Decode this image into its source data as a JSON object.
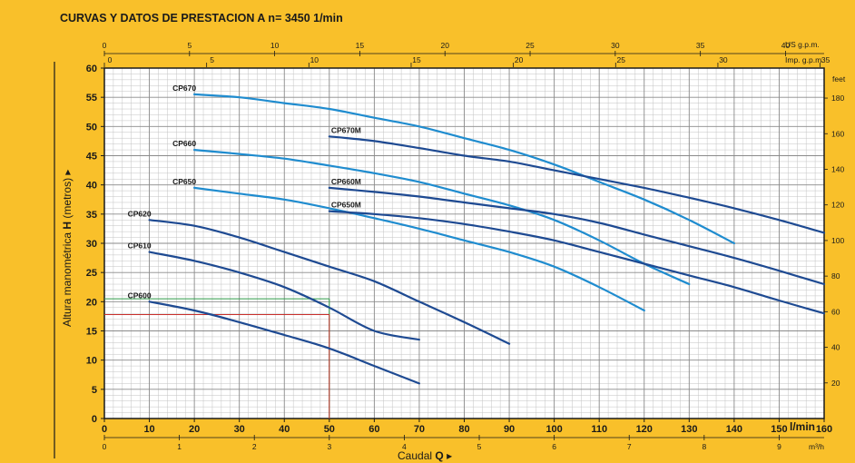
{
  "chart_data": {
    "type": "line",
    "title": "CURVAS Y DATOS DE PRESTACION A n= 3450  1/min",
    "ylabel_prefix": "Altura manométrica",
    "ylabel_symbol": "H",
    "ylabel_unit": "(metros)",
    "xlabel": "Caudal",
    "xlabel_symbol": "Q",
    "x_unit": "l/min",
    "feet_unit": "feet",
    "usgpm_unit": "US g.p.m.",
    "impgpm_unit": "Imp. g.p.m.",
    "m3h_unit": "m³/h",
    "xlim": [
      0,
      160
    ],
    "ylim": [
      0,
      60
    ],
    "grid": true,
    "x_ticks": [
      0,
      10,
      20,
      30,
      40,
      50,
      60,
      70,
      80,
      90,
      100,
      110,
      120,
      130,
      140,
      150,
      160
    ],
    "y_ticks": [
      0,
      5,
      10,
      15,
      20,
      25,
      30,
      35,
      40,
      45,
      50,
      55,
      60
    ],
    "feet_ticks": [
      20,
      40,
      60,
      80,
      100,
      120,
      140,
      160,
      180
    ],
    "usgpm_ticks": [
      0,
      5,
      10,
      15,
      20,
      25,
      30,
      35,
      40
    ],
    "impgpm_ticks": [
      0,
      5,
      10,
      15,
      20,
      25,
      30,
      35
    ],
    "m3h_ticks": [
      0,
      1,
      2,
      3,
      4,
      5,
      6,
      7,
      8,
      9
    ],
    "series": [
      {
        "name": "CP600",
        "color": "#1e4a92",
        "x": [
          10,
          20,
          30,
          40,
          50,
          60,
          70
        ],
        "y": [
          20,
          18.5,
          16.5,
          14.3,
          12,
          9,
          6
        ]
      },
      {
        "name": "CP610",
        "color": "#1e4a92",
        "x": [
          10,
          20,
          30,
          40,
          50,
          60,
          70
        ],
        "y": [
          28.5,
          27,
          25,
          22.5,
          19,
          15,
          13.5
        ]
      },
      {
        "name": "CP620",
        "color": "#1e4a92",
        "x": [
          10,
          20,
          30,
          40,
          50,
          60,
          70,
          80,
          90
        ],
        "y": [
          34,
          33,
          31,
          28.5,
          26,
          23.5,
          20,
          16.5,
          12.8
        ]
      },
      {
        "name": "CP650",
        "color": "#1f8ccf",
        "x": [
          20,
          30,
          40,
          50,
          60,
          70,
          80,
          90,
          100,
          110,
          120
        ],
        "y": [
          39.5,
          38.5,
          37.5,
          36,
          34.3,
          32.5,
          30.5,
          28.5,
          26,
          22.5,
          18.5
        ]
      },
      {
        "name": "CP660",
        "color": "#1f8ccf",
        "x": [
          20,
          30,
          40,
          50,
          60,
          70,
          80,
          90,
          100,
          110,
          120,
          130
        ],
        "y": [
          46,
          45.3,
          44.5,
          43.3,
          42,
          40.5,
          38.5,
          36.5,
          34,
          30.5,
          26.5,
          23
        ]
      },
      {
        "name": "CP670",
        "color": "#1f8ccf",
        "x": [
          20,
          30,
          40,
          50,
          60,
          70,
          80,
          90,
          100,
          110,
          120,
          130,
          140
        ],
        "y": [
          55.5,
          55,
          54,
          53,
          51.5,
          50,
          48,
          46,
          43.5,
          40.5,
          37.5,
          34,
          30
        ]
      },
      {
        "name": "CP650M",
        "color": "#1e4a92",
        "x": [
          50,
          60,
          70,
          80,
          90,
          100,
          110,
          120,
          130,
          140,
          150,
          160
        ],
        "y": [
          35.5,
          35,
          34.3,
          33.3,
          32,
          30.5,
          28.5,
          26.5,
          24.5,
          22.5,
          20.2,
          18
        ]
      },
      {
        "name": "CP660M",
        "color": "#1e4a92",
        "x": [
          50,
          60,
          70,
          80,
          90,
          100,
          110,
          120,
          130,
          140,
          150,
          160
        ],
        "y": [
          39.5,
          38.8,
          38,
          37,
          36,
          35,
          33.5,
          31.5,
          29.5,
          27.5,
          25.3,
          23
        ]
      },
      {
        "name": "CP670M",
        "color": "#1e4a92",
        "x": [
          50,
          60,
          70,
          80,
          90,
          100,
          110,
          120,
          130,
          140,
          150,
          160
        ],
        "y": [
          48.3,
          47.5,
          46.3,
          45,
          44,
          42.5,
          41,
          39.5,
          37.8,
          36,
          34,
          31.8
        ]
      }
    ],
    "guides": [
      {
        "color": "#2e9a47",
        "x": [
          0,
          50
        ],
        "y": [
          20.5,
          20.5
        ]
      },
      {
        "color": "#2e9a47",
        "x": [
          50,
          50
        ],
        "y": [
          20.5,
          0
        ]
      },
      {
        "color": "#c9302c",
        "x": [
          0,
          50
        ],
        "y": [
          17.8,
          17.8
        ]
      },
      {
        "color": "#c9302c",
        "x": [
          50,
          50
        ],
        "y": [
          17.8,
          0
        ]
      }
    ],
    "label_anchors": {
      "CP670": [
        20,
        55.5
      ],
      "CP660": [
        20,
        46
      ],
      "CP650": [
        20,
        39.5
      ],
      "CP620": [
        10,
        34
      ],
      "CP610": [
        10,
        28.5
      ],
      "CP600": [
        10,
        20
      ],
      "CP670M": [
        50,
        48.3
      ],
      "CP660M": [
        50,
        39.5
      ],
      "CP650M": [
        50,
        35.5
      ]
    }
  }
}
